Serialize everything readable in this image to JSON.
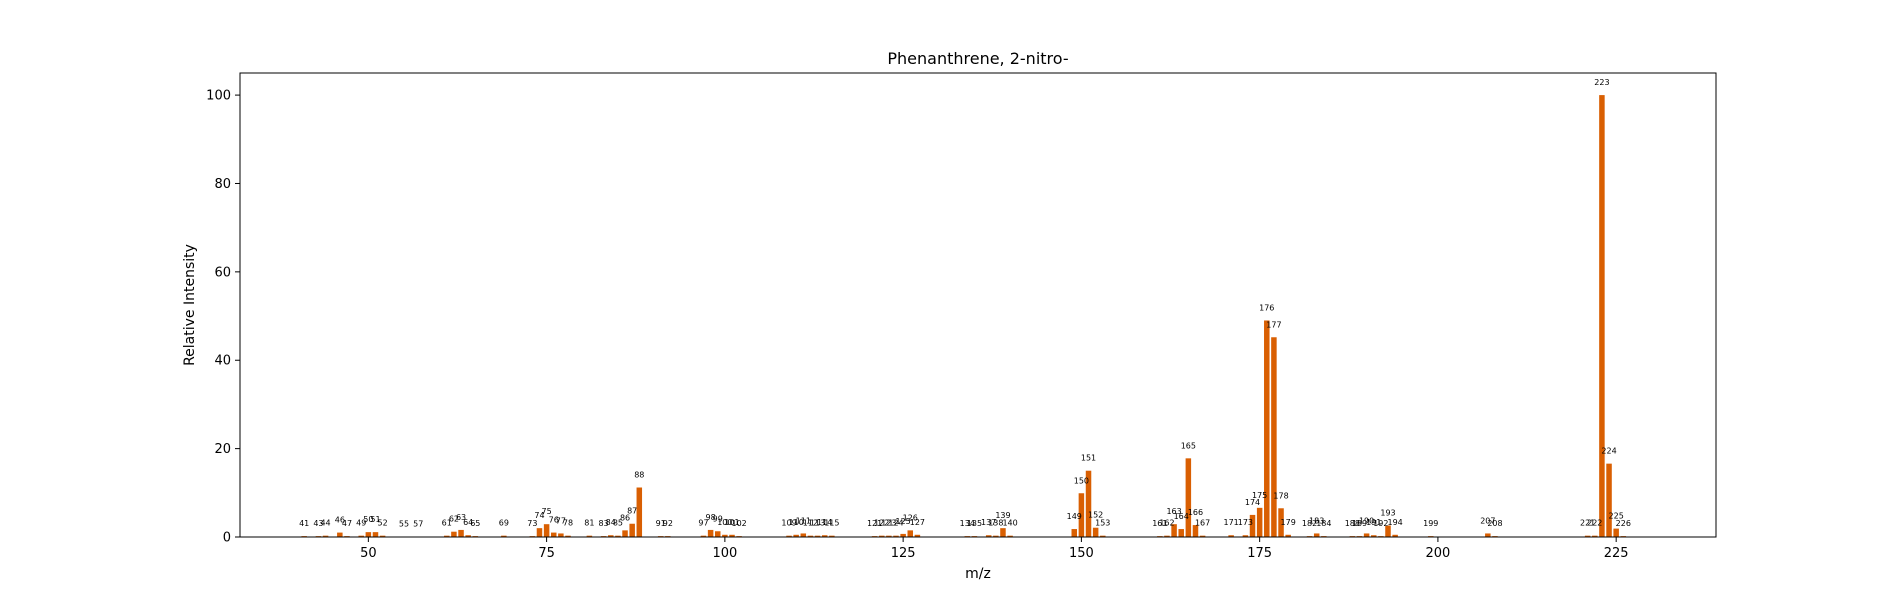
{
  "chart_data": {
    "type": "bar",
    "title": "Phenanthrene, 2-nitro-",
    "xlabel": "m/z",
    "ylabel": "Relative Intensity",
    "xlim": [
      32,
      239
    ],
    "ylim": [
      0,
      105
    ],
    "xticks": [
      50,
      75,
      100,
      125,
      150,
      175,
      200,
      225
    ],
    "yticks": [
      0,
      20,
      40,
      60,
      80,
      100
    ],
    "bar_color": "#d95f02",
    "grid": false,
    "peaks": [
      {
        "mz": 41,
        "intensity": 0.2
      },
      {
        "mz": 43,
        "intensity": 0.2
      },
      {
        "mz": 44,
        "intensity": 0.3
      },
      {
        "mz": 46,
        "intensity": 1.0
      },
      {
        "mz": 47,
        "intensity": 0.2
      },
      {
        "mz": 49,
        "intensity": 0.3
      },
      {
        "mz": 50,
        "intensity": 1.1
      },
      {
        "mz": 51,
        "intensity": 1.1
      },
      {
        "mz": 52,
        "intensity": 0.3
      },
      {
        "mz": 55,
        "intensity": 0.1
      },
      {
        "mz": 57,
        "intensity": 0.1
      },
      {
        "mz": 61,
        "intensity": 0.3
      },
      {
        "mz": 62,
        "intensity": 1.2
      },
      {
        "mz": 63,
        "intensity": 1.6
      },
      {
        "mz": 64,
        "intensity": 0.4
      },
      {
        "mz": 65,
        "intensity": 0.2
      },
      {
        "mz": 69,
        "intensity": 0.3
      },
      {
        "mz": 73,
        "intensity": 0.2
      },
      {
        "mz": 74,
        "intensity": 2.0
      },
      {
        "mz": 75,
        "intensity": 2.9
      },
      {
        "mz": 76,
        "intensity": 1.0
      },
      {
        "mz": 77,
        "intensity": 0.8
      },
      {
        "mz": 78,
        "intensity": 0.3
      },
      {
        "mz": 81,
        "intensity": 0.3
      },
      {
        "mz": 83,
        "intensity": 0.2
      },
      {
        "mz": 84,
        "intensity": 0.4
      },
      {
        "mz": 85,
        "intensity": 0.3
      },
      {
        "mz": 86,
        "intensity": 1.5
      },
      {
        "mz": 87,
        "intensity": 3.0
      },
      {
        "mz": 88,
        "intensity": 11.2
      },
      {
        "mz": 91,
        "intensity": 0.2
      },
      {
        "mz": 92,
        "intensity": 0.2
      },
      {
        "mz": 97,
        "intensity": 0.3
      },
      {
        "mz": 98,
        "intensity": 1.6
      },
      {
        "mz": 99,
        "intensity": 1.3
      },
      {
        "mz": 100,
        "intensity": 0.5
      },
      {
        "mz": 101,
        "intensity": 0.5
      },
      {
        "mz": 102,
        "intensity": 0.2
      },
      {
        "mz": 109,
        "intensity": 0.3
      },
      {
        "mz": 110,
        "intensity": 0.5
      },
      {
        "mz": 111,
        "intensity": 0.8
      },
      {
        "mz": 112,
        "intensity": 0.3
      },
      {
        "mz": 113,
        "intensity": 0.3
      },
      {
        "mz": 114,
        "intensity": 0.4
      },
      {
        "mz": 115,
        "intensity": 0.3
      },
      {
        "mz": 121,
        "intensity": 0.2
      },
      {
        "mz": 122,
        "intensity": 0.3
      },
      {
        "mz": 123,
        "intensity": 0.3
      },
      {
        "mz": 124,
        "intensity": 0.3
      },
      {
        "mz": 125,
        "intensity": 0.7
      },
      {
        "mz": 126,
        "intensity": 1.5
      },
      {
        "mz": 127,
        "intensity": 0.5
      },
      {
        "mz": 134,
        "intensity": 0.2
      },
      {
        "mz": 135,
        "intensity": 0.2
      },
      {
        "mz": 137,
        "intensity": 0.4
      },
      {
        "mz": 138,
        "intensity": 0.3
      },
      {
        "mz": 139,
        "intensity": 2.0
      },
      {
        "mz": 140,
        "intensity": 0.3
      },
      {
        "mz": 149,
        "intensity": 1.8
      },
      {
        "mz": 150,
        "intensity": 9.9
      },
      {
        "mz": 151,
        "intensity": 15.0
      },
      {
        "mz": 152,
        "intensity": 2.1
      },
      {
        "mz": 153,
        "intensity": 0.3
      },
      {
        "mz": 161,
        "intensity": 0.2
      },
      {
        "mz": 162,
        "intensity": 0.3
      },
      {
        "mz": 163,
        "intensity": 2.9
      },
      {
        "mz": 164,
        "intensity": 1.8
      },
      {
        "mz": 165,
        "intensity": 17.8
      },
      {
        "mz": 166,
        "intensity": 2.7
      },
      {
        "mz": 167,
        "intensity": 0.3
      },
      {
        "mz": 171,
        "intensity": 0.4
      },
      {
        "mz": 173,
        "intensity": 0.4
      },
      {
        "mz": 174,
        "intensity": 5.0
      },
      {
        "mz": 175,
        "intensity": 6.6
      },
      {
        "mz": 176,
        "intensity": 49.0
      },
      {
        "mz": 177,
        "intensity": 45.2
      },
      {
        "mz": 178,
        "intensity": 6.5
      },
      {
        "mz": 179,
        "intensity": 0.5
      },
      {
        "mz": 182,
        "intensity": 0.2
      },
      {
        "mz": 183,
        "intensity": 0.8
      },
      {
        "mz": 184,
        "intensity": 0.2
      },
      {
        "mz": 188,
        "intensity": 0.2
      },
      {
        "mz": 189,
        "intensity": 0.2
      },
      {
        "mz": 190,
        "intensity": 0.8
      },
      {
        "mz": 191,
        "intensity": 0.4
      },
      {
        "mz": 192,
        "intensity": 0.2
      },
      {
        "mz": 193,
        "intensity": 2.6
      },
      {
        "mz": 194,
        "intensity": 0.5
      },
      {
        "mz": 199,
        "intensity": 0.2
      },
      {
        "mz": 207,
        "intensity": 0.8
      },
      {
        "mz": 208,
        "intensity": 0.2
      },
      {
        "mz": 221,
        "intensity": 0.3
      },
      {
        "mz": 222,
        "intensity": 0.3
      },
      {
        "mz": 223,
        "intensity": 100.0
      },
      {
        "mz": 224,
        "intensity": 16.6
      },
      {
        "mz": 225,
        "intensity": 1.9
      },
      {
        "mz": 226,
        "intensity": 0.2
      }
    ]
  }
}
